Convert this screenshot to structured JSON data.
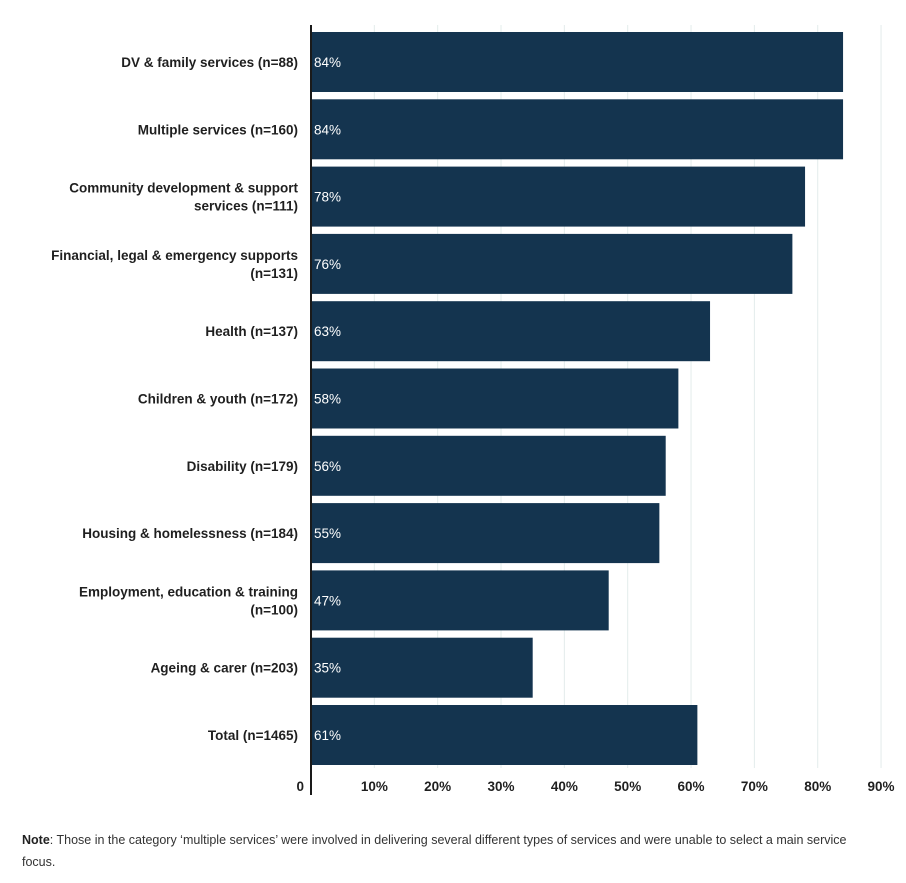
{
  "chart_data": {
    "type": "bar",
    "orientation": "horizontal",
    "categories": [
      [
        "DV & family services (n=88)"
      ],
      [
        "Multiple services (n=160)"
      ],
      [
        "Community development & support",
        "services (n=111)"
      ],
      [
        "Financial, legal & emergency supports",
        "(n=131)"
      ],
      [
        "Health (n=137)"
      ],
      [
        "Children & youth (n=172)"
      ],
      [
        "Disability (n=179)"
      ],
      [
        "Housing & homelessness (n=184)"
      ],
      [
        "Employment, education & training",
        "(n=100)"
      ],
      [
        "Ageing & carer (n=203)"
      ],
      [
        "Total (n=1465)"
      ]
    ],
    "values": [
      84,
      84,
      78,
      76,
      63,
      58,
      56,
      55,
      47,
      35,
      61
    ],
    "value_labels": [
      "84%",
      "84%",
      "78%",
      "76%",
      "63%",
      "58%",
      "56%",
      "55%",
      "47%",
      "35%",
      "61%"
    ],
    "xlim": [
      0,
      90
    ],
    "xticks": [
      0,
      10,
      20,
      30,
      40,
      50,
      60,
      70,
      80,
      90
    ],
    "xtick_labels": [
      "0",
      "10%",
      "20%",
      "30%",
      "40%",
      "50%",
      "60%",
      "70%",
      "80%",
      "90%"
    ],
    "grid": true,
    "bar_color": "#14344f",
    "grid_color": "#e3eceb"
  },
  "note": {
    "label": "Note",
    "text": ": Those in the category ‘multiple services’ were involved in delivering several different types of services and were unable to select a main service focus."
  }
}
